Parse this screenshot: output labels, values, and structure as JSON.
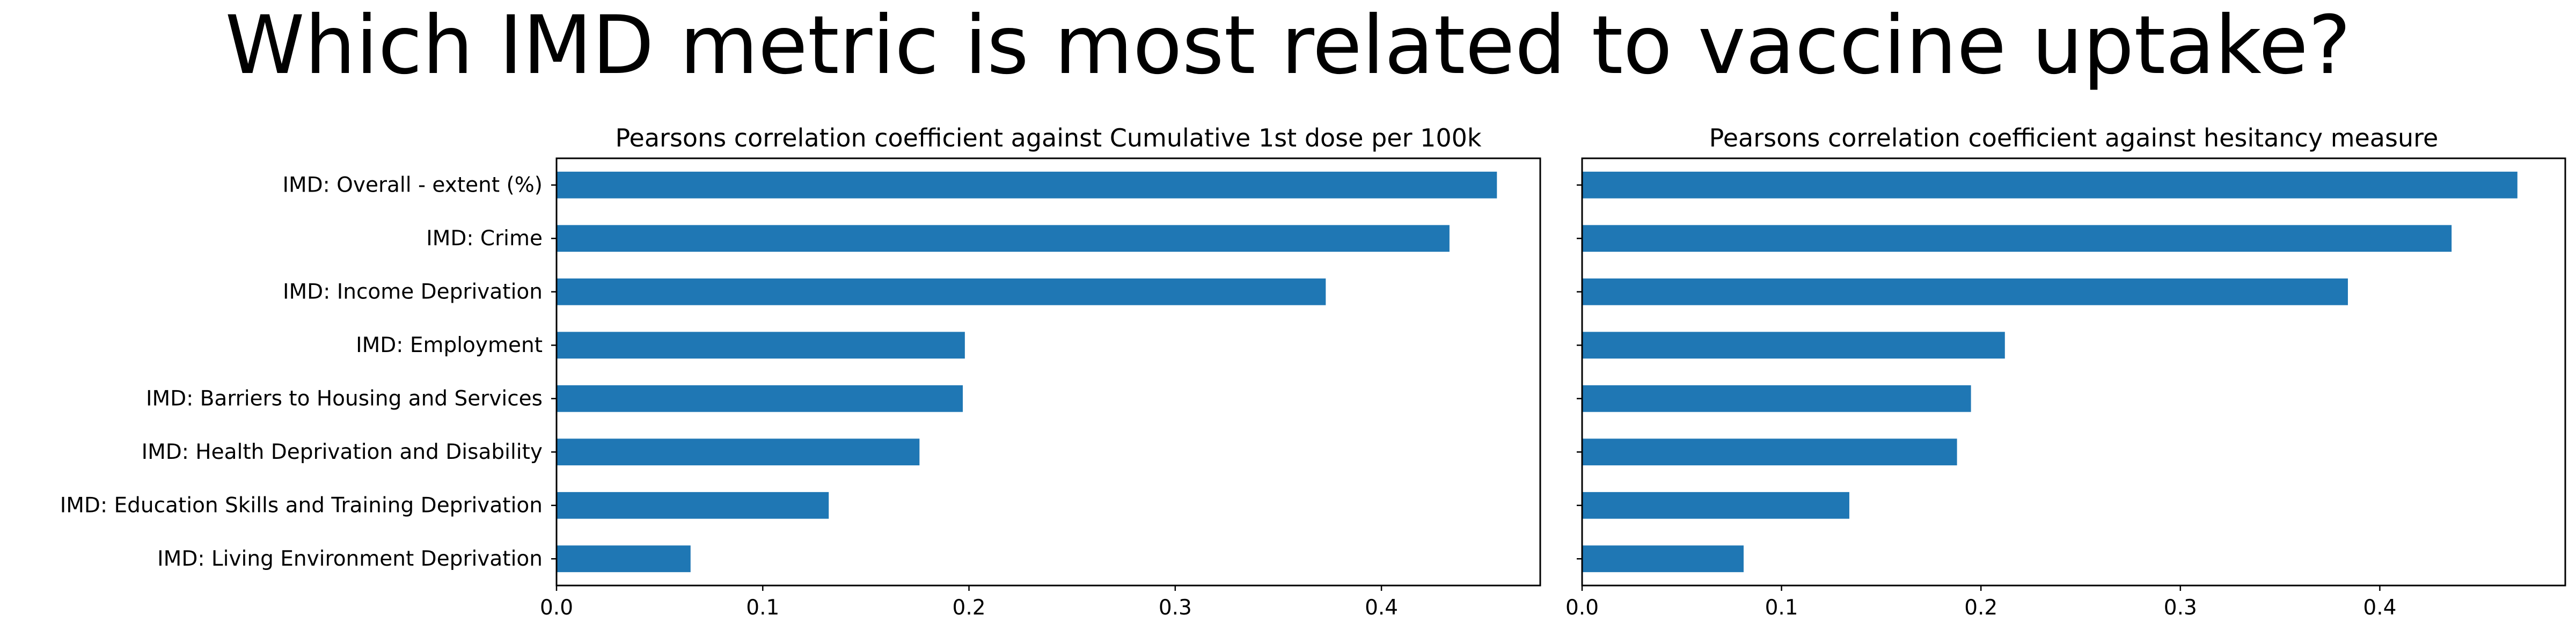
{
  "title": "Which IMD metric is most related to vaccine uptake?",
  "colors": {
    "bar": "#1f77b4",
    "axis": "#000000",
    "background": "#ffffff"
  },
  "chart_data": [
    {
      "type": "bar",
      "orientation": "horizontal",
      "title": "Pearsons correlation coefficient against Cumulative 1st dose per 100k",
      "xlabel": "",
      "ylabel": "",
      "xlim": [
        0.0,
        0.477
      ],
      "xticks": [
        0.0,
        0.1,
        0.2,
        0.3,
        0.4
      ],
      "xtick_labels": [
        "0.0",
        "0.1",
        "0.2",
        "0.3",
        "0.4"
      ],
      "categories": [
        "IMD: Overall - extent (%)",
        "IMD: Crime",
        "IMD: Income Deprivation",
        "IMD: Employment",
        "IMD: Barriers to Housing and Services",
        "IMD: Health Deprivation and Disability",
        "IMD: Education Skills and Training Deprivation",
        "IMD: Living Environment Deprivation"
      ],
      "values": [
        0.456,
        0.433,
        0.373,
        0.198,
        0.197,
        0.176,
        0.132,
        0.065
      ],
      "show_category_labels": true
    },
    {
      "type": "bar",
      "orientation": "horizontal",
      "title": "Pearsons correlation coefficient against hesitancy measure",
      "xlabel": "",
      "ylabel": "",
      "xlim": [
        0.0,
        0.493
      ],
      "xticks": [
        0.0,
        0.1,
        0.2,
        0.3,
        0.4
      ],
      "xtick_labels": [
        "0.0",
        "0.1",
        "0.2",
        "0.3",
        "0.4"
      ],
      "categories": [
        "IMD: Overall - extent (%)",
        "IMD: Crime",
        "IMD: Income Deprivation",
        "IMD: Employment",
        "IMD: Barriers to Housing and Services",
        "IMD: Health Deprivation and Disability",
        "IMD: Education Skills and Training Deprivation",
        "IMD: Living Environment Deprivation"
      ],
      "values": [
        0.469,
        0.436,
        0.384,
        0.212,
        0.195,
        0.188,
        0.134,
        0.081
      ],
      "show_category_labels": false
    }
  ]
}
